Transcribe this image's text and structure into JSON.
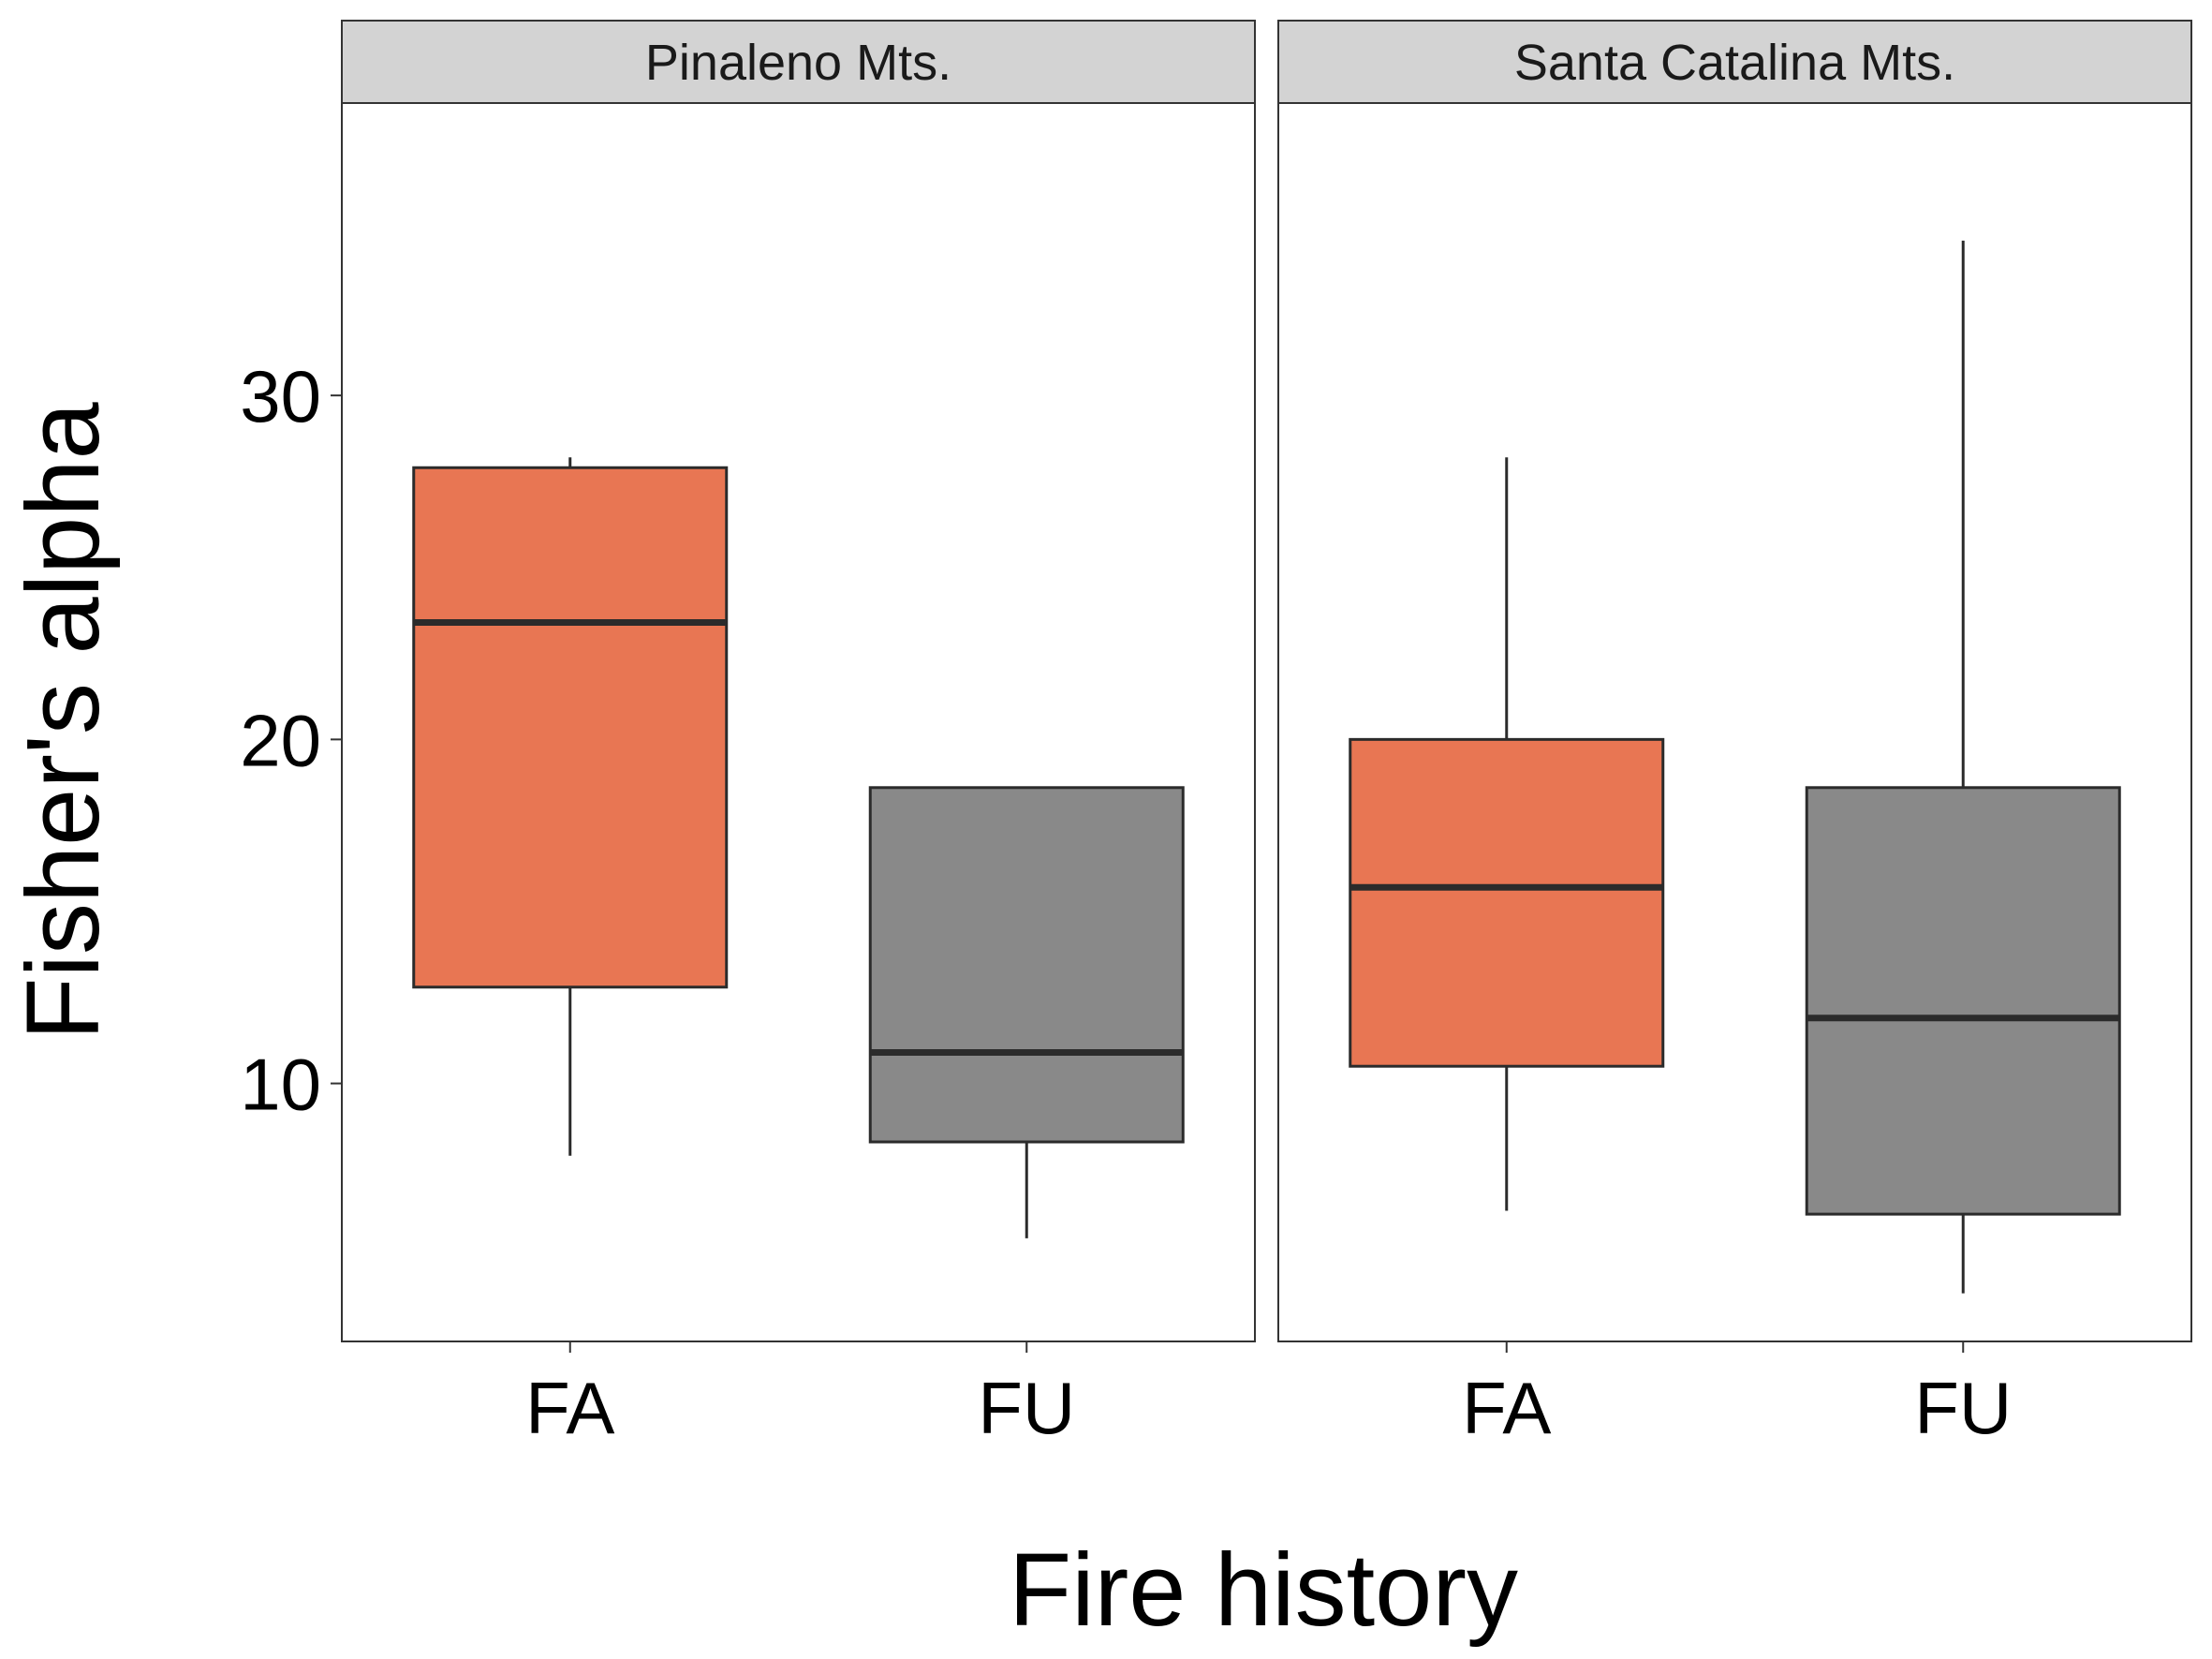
{
  "chart_data": {
    "type": "boxplot",
    "xlabel": "Fire history",
    "ylabel": "Fisher's alpha",
    "ylim": [
      2.5,
      38.5
    ],
    "yticks": [
      10,
      20,
      30
    ],
    "categories": [
      "FA",
      "FU"
    ],
    "colors": {
      "FA": "#E87653",
      "FU": "#898989"
    },
    "grid": false,
    "panels": [
      {
        "title": "Pinaleno Mts.",
        "boxes": [
          {
            "category": "FA",
            "whisker_low": 7.9,
            "q1": 12.8,
            "median": 23.4,
            "q3": 27.9,
            "whisker_high": 28.2
          },
          {
            "category": "FU",
            "whisker_low": 5.5,
            "q1": 8.3,
            "median": 10.9,
            "q3": 18.6,
            "whisker_high": 18.6
          }
        ]
      },
      {
        "title": "Santa Catalina Mts.",
        "boxes": [
          {
            "category": "FA",
            "whisker_low": 6.3,
            "q1": 10.5,
            "median": 15.7,
            "q3": 20.0,
            "whisker_high": 28.2
          },
          {
            "category": "FU",
            "whisker_low": 3.9,
            "q1": 6.2,
            "median": 11.9,
            "q3": 18.6,
            "whisker_high": 34.5
          }
        ]
      }
    ]
  }
}
